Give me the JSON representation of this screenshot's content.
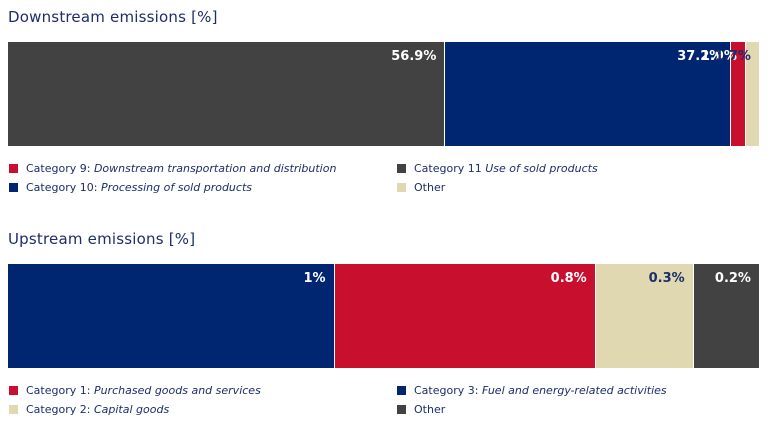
{
  "chart_data": [
    {
      "type": "stacked-bar-100",
      "title": "Downstream emissions [%]",
      "segments": [
        {
          "name": "Category 11 Use of sold products",
          "value": 56.9,
          "label": "56.9%",
          "color": "#424242",
          "label_color": "#ffffff"
        },
        {
          "name": "Category 10: Processing of sold products",
          "value": 37.2,
          "label": "37.2%",
          "color": "#002672",
          "label_color": "#ffffff"
        },
        {
          "name": "Category 9: Downstream transportation and distribution",
          "value": 1.9,
          "label": "1.9%",
          "color": "#c8102e",
          "label_color": "#ffffff"
        },
        {
          "name": "Other",
          "value": 1.7,
          "label": "1.7%",
          "color": "#e0d8b0",
          "label_color": "#1d2d6b"
        }
      ],
      "legend": [
        [
          {
            "prefix": "Category 9: ",
            "italic": "Downstream transportation and distribution",
            "color": "#c8102e"
          },
          {
            "prefix": "Category 10: ",
            "italic": "Processing of sold products",
            "color": "#002672"
          }
        ],
        [
          {
            "prefix": "Category 11 ",
            "italic": "Use of sold products",
            "color": "#424242"
          },
          {
            "prefix": "Other",
            "italic": "",
            "color": "#e0d8b0"
          }
        ]
      ]
    },
    {
      "type": "stacked-bar-100",
      "title": "Upstream emissions [%]",
      "segments": [
        {
          "name": "Category 3: Fuel and energy-related activities",
          "value": 1.0,
          "label": "1%",
          "color": "#002672",
          "label_color": "#ffffff"
        },
        {
          "name": "Category 1: Purchased goods and services",
          "value": 0.8,
          "label": "0.8%",
          "color": "#c8102e",
          "label_color": "#ffffff"
        },
        {
          "name": "Category 2: Capital goods",
          "value": 0.3,
          "label": "0.3%",
          "color": "#e0d8b0",
          "label_color": "#1d2d6b"
        },
        {
          "name": "Other",
          "value": 0.2,
          "label": "0.2%",
          "color": "#424242",
          "label_color": "#ffffff"
        }
      ],
      "legend": [
        [
          {
            "prefix": "Category 1: ",
            "italic": "Purchased goods and services",
            "color": "#c8102e"
          },
          {
            "prefix": "Category 2: ",
            "italic": "Capital goods",
            "color": "#e0d8b0"
          }
        ],
        [
          {
            "prefix": "Category 3: ",
            "italic": "Fuel and energy-related activities",
            "color": "#002672"
          },
          {
            "prefix": "Other",
            "italic": "",
            "color": "#424242"
          }
        ]
      ]
    }
  ]
}
